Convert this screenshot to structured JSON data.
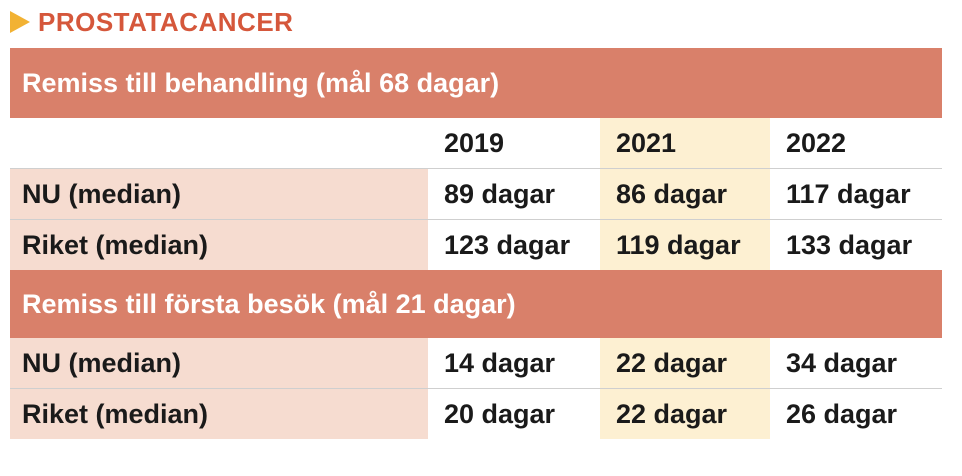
{
  "title": "PROSTATACANCER",
  "years": [
    "2019",
    "2021",
    "2022"
  ],
  "sections": [
    {
      "heading": "Remiss till behandling (mål 68 dagar)",
      "rows": [
        {
          "label": "NU (median)",
          "values": [
            "89 dagar",
            "86 dagar",
            "117 dagar"
          ]
        },
        {
          "label": "Riket (median)",
          "values": [
            "123 dagar",
            "119 dagar",
            "133 dagar"
          ]
        }
      ]
    },
    {
      "heading": "Remiss till första besök (mål 21 dagar)",
      "rows": [
        {
          "label": "NU (median)",
          "values": [
            "14 dagar",
            "22 dagar",
            "34 dagar"
          ]
        },
        {
          "label": "Riket (median)",
          "values": [
            "20 dagar",
            "22 dagar",
            "26 dagar"
          ]
        }
      ]
    }
  ],
  "colors": {
    "accent_header": "#d9806a",
    "title": "#d5573b",
    "arrow": "#f2b233",
    "highlight_2021": "#fdf0d2",
    "label_bg": "#f6dcd0"
  },
  "icons": {
    "title_marker": "triangle-arrow-icon"
  }
}
